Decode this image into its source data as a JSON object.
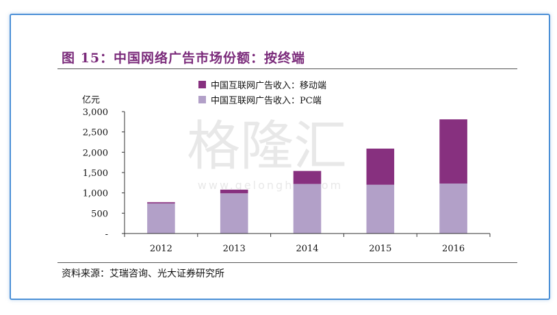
{
  "header": {
    "title": "图 15：中国网络广告市场份额：按终端"
  },
  "footer": {
    "source": "资料来源：艾瑞咨询、光大证券研究所"
  },
  "watermark": {
    "cn": "格隆汇",
    "url": "www.gelonghui.com"
  },
  "colors": {
    "mobile": "#87307f",
    "pc": "#b2a0c8",
    "frame": "#4a8fd6",
    "title": "#7a2a7a"
  },
  "chart_data": {
    "type": "bar",
    "stacked": true,
    "title": "",
    "ylabel": "亿元",
    "xlabel": "",
    "ylim": [
      0,
      3000
    ],
    "yticks": [
      0,
      500,
      1000,
      1500,
      2000,
      2500,
      3000
    ],
    "ytick_labels": [
      "-",
      "500",
      "1,000",
      "1,500",
      "2,000",
      "2,500",
      "3,000"
    ],
    "categories": [
      "2012",
      "2013",
      "2014",
      "2015",
      "2016"
    ],
    "legend_position": "top-left",
    "series": [
      {
        "name": "中国互联网广告收入：移动端",
        "color": "#87307f",
        "values": [
          30,
          90,
          320,
          890,
          1580
        ]
      },
      {
        "name": "中国互联网广告收入：PC端",
        "color": "#b2a0c8",
        "values": [
          740,
          990,
          1220,
          1200,
          1230
        ]
      }
    ]
  }
}
